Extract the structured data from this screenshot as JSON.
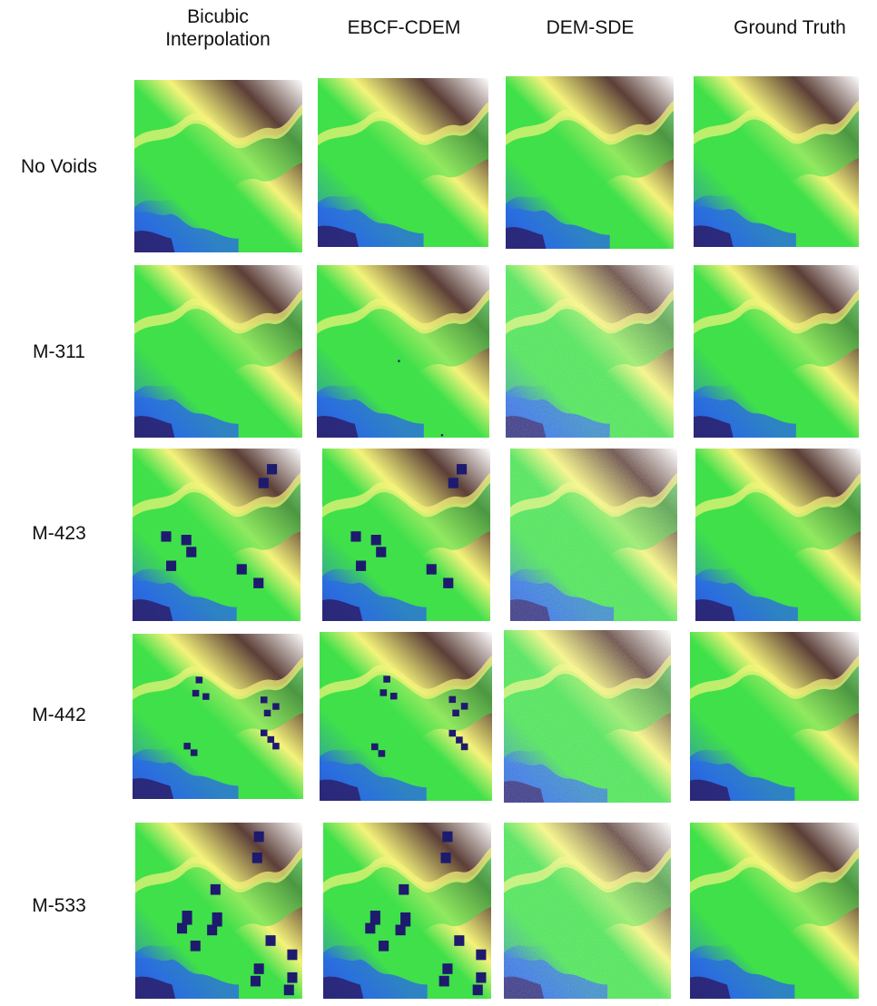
{
  "columns": [
    {
      "line1": "Bicubic",
      "line2": "Interpolation"
    },
    {
      "line1": "EBCF-CDEM",
      "line2": ""
    },
    {
      "line1": "DEM-SDE",
      "line2": ""
    },
    {
      "line1": "Ground Truth",
      "line2": ""
    }
  ],
  "rows": [
    {
      "label": "No Voids"
    },
    {
      "label": "M-311"
    },
    {
      "label": "M-423"
    },
    {
      "label": "M-442"
    },
    {
      "label": "M-533"
    }
  ],
  "colormap": {
    "low": "#2b1f6b",
    "blue": "#2a6de0",
    "green": "#3fe04a",
    "yellow": "#f4f37a",
    "brown": "#5c3f38",
    "white": "#ffffff",
    "void": "#1e1a6e"
  }
}
